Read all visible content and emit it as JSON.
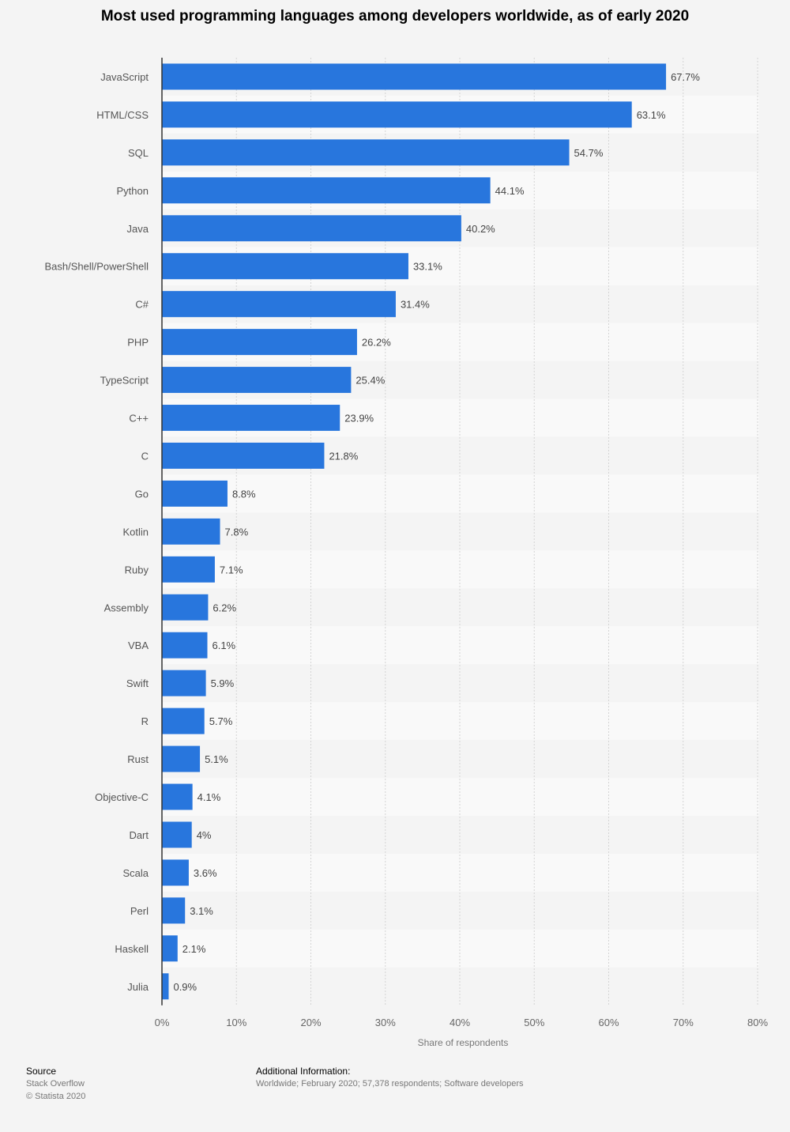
{
  "chart_data": {
    "type": "bar",
    "orientation": "horizontal",
    "title": "Most used programming languages among developers worldwide, as of early 2020",
    "xlabel": "Share of respondents",
    "ylabel": "",
    "xlim": [
      0,
      80
    ],
    "ticks": [
      "0%",
      "10%",
      "20%",
      "30%",
      "40%",
      "50%",
      "60%",
      "70%",
      "80%"
    ],
    "grid": true,
    "bar_color": "#2876dd",
    "categories": [
      "JavaScript",
      "HTML/CSS",
      "SQL",
      "Python",
      "Java",
      "Bash/Shell/PowerShell",
      "C#",
      "PHP",
      "TypeScript",
      "C++",
      "C",
      "Go",
      "Kotlin",
      "Ruby",
      "Assembly",
      "VBA",
      "Swift",
      "R",
      "Rust",
      "Objective-C",
      "Dart",
      "Scala",
      "Perl",
      "Haskell",
      "Julia"
    ],
    "values": [
      67.7,
      63.1,
      54.7,
      44.1,
      40.2,
      33.1,
      31.4,
      26.2,
      25.4,
      23.9,
      21.8,
      8.8,
      7.8,
      7.1,
      6.2,
      6.1,
      5.9,
      5.7,
      5.1,
      4.1,
      4,
      3.6,
      3.1,
      2.1,
      0.9
    ],
    "data_labels": [
      "67.7%",
      "63.1%",
      "54.7%",
      "44.1%",
      "40.2%",
      "33.1%",
      "31.4%",
      "26.2%",
      "25.4%",
      "23.9%",
      "21.8%",
      "8.8%",
      "7.8%",
      "7.1%",
      "6.2%",
      "6.1%",
      "5.9%",
      "5.7%",
      "5.1%",
      "4.1%",
      "4%",
      "3.6%",
      "3.1%",
      "2.1%",
      "0.9%"
    ]
  },
  "footer": {
    "source_heading": "Source",
    "source": "Stack Overflow",
    "copyright": "© Statista 2020",
    "additional_heading": "Additional Information:",
    "additional": "Worldwide; February 2020; 57,378 respondents; Software developers"
  }
}
